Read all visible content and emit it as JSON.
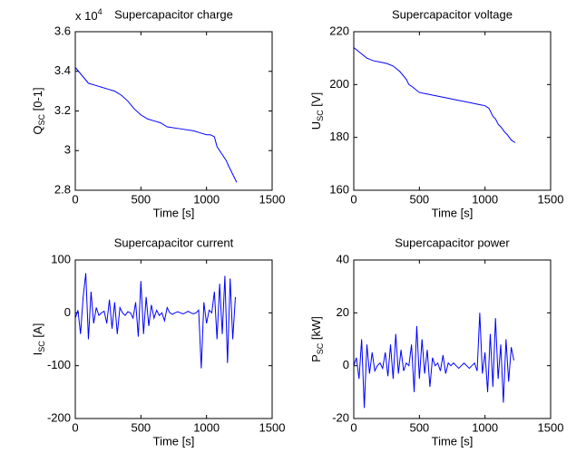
{
  "chart_data": [
    {
      "type": "line",
      "title": "Supercapacitor charge",
      "xlabel": "Time [s]",
      "ylabel": [
        "Q",
        "SC",
        " [0-1]"
      ],
      "y_exponent": [
        "x 10",
        "4"
      ],
      "xlim": [
        0,
        1500
      ],
      "xticks": [
        0,
        500,
        1000,
        1500
      ],
      "ylim": [
        2.8,
        3.6
      ],
      "yticks": [
        2.8,
        3,
        3.2,
        3.4,
        3.6
      ],
      "x": [
        0,
        50,
        100,
        150,
        200,
        250,
        300,
        350,
        400,
        450,
        500,
        550,
        600,
        650,
        700,
        800,
        900,
        950,
        1000,
        1030,
        1060,
        1080,
        1100,
        1120,
        1150,
        1170,
        1200,
        1230
      ],
      "series": [
        {
          "color": "#0000ff",
          "values": [
            3.42,
            3.38,
            3.34,
            3.33,
            3.32,
            3.31,
            3.3,
            3.28,
            3.25,
            3.21,
            3.18,
            3.16,
            3.15,
            3.14,
            3.12,
            3.11,
            3.1,
            3.09,
            3.08,
            3.08,
            3.07,
            3.02,
            3.0,
            2.98,
            2.95,
            2.92,
            2.88,
            2.84
          ]
        }
      ]
    },
    {
      "type": "line",
      "title": "Supercapacitor voltage",
      "xlabel": "Time [s]",
      "ylabel": [
        "U",
        "SC",
        " [V]"
      ],
      "xlim": [
        0,
        1500
      ],
      "xticks": [
        0,
        500,
        1000,
        1500
      ],
      "ylim": [
        160,
        220
      ],
      "yticks": [
        160,
        180,
        200,
        220
      ],
      "x": [
        0,
        50,
        100,
        150,
        200,
        250,
        300,
        350,
        400,
        420,
        450,
        500,
        550,
        600,
        700,
        800,
        900,
        950,
        1000,
        1030,
        1060,
        1080,
        1100,
        1120,
        1150,
        1170,
        1200,
        1230
      ],
      "series": [
        {
          "color": "#0000ff",
          "values": [
            214,
            212,
            210,
            209,
            208.5,
            208,
            207,
            205,
            202,
            200,
            199,
            197,
            196.5,
            196,
            195,
            194,
            193,
            192.5,
            192,
            191,
            188,
            187,
            185,
            184,
            182,
            181,
            179,
            178
          ]
        }
      ]
    },
    {
      "type": "line",
      "title": "Supercapacitor current",
      "xlabel": "Time [s]",
      "ylabel": [
        "I",
        "SC",
        " [A]"
      ],
      "xlim": [
        0,
        1500
      ],
      "xticks": [
        0,
        500,
        1000,
        1500
      ],
      "ylim": [
        -200,
        100
      ],
      "yticks": [
        -200,
        -100,
        0,
        100
      ],
      "x": [
        0,
        20,
        40,
        60,
        80,
        100,
        120,
        140,
        160,
        180,
        200,
        220,
        240,
        260,
        280,
        300,
        320,
        340,
        360,
        380,
        400,
        420,
        440,
        460,
        480,
        500,
        520,
        540,
        560,
        580,
        600,
        620,
        640,
        660,
        680,
        700,
        720,
        740,
        760,
        780,
        800,
        820,
        840,
        860,
        880,
        900,
        920,
        940,
        960,
        980,
        1000,
        1020,
        1040,
        1060,
        1080,
        1100,
        1120,
        1140,
        1160,
        1180,
        1200,
        1220
      ],
      "series": [
        {
          "color": "#0000ff",
          "values": [
            -10,
            5,
            -40,
            30,
            75,
            -50,
            40,
            -20,
            10,
            -5,
            0,
            3,
            -20,
            25,
            -30,
            20,
            -40,
            10,
            0,
            -5,
            2,
            0,
            -10,
            20,
            -45,
            60,
            -40,
            30,
            -25,
            15,
            -10,
            5,
            -5,
            0,
            -15,
            10,
            0,
            -3,
            0,
            2,
            0,
            -2,
            0,
            3,
            0,
            -2,
            0,
            5,
            -105,
            20,
            -20,
            5,
            0,
            40,
            -50,
            55,
            -40,
            70,
            -95,
            65,
            -50,
            30
          ]
        }
      ]
    },
    {
      "type": "line",
      "title": "Supercapacitor power",
      "xlabel": "Time [s]",
      "ylabel": [
        "P",
        "SC",
        " [kW]"
      ],
      "xlim": [
        0,
        1500
      ],
      "xticks": [
        0,
        500,
        1000,
        1500
      ],
      "ylim": [
        -20,
        40
      ],
      "yticks": [
        -20,
        0,
        20,
        40
      ],
      "x": [
        0,
        20,
        40,
        60,
        80,
        100,
        120,
        140,
        160,
        180,
        200,
        220,
        240,
        260,
        280,
        300,
        320,
        340,
        360,
        380,
        400,
        420,
        440,
        460,
        480,
        500,
        520,
        540,
        560,
        580,
        600,
        620,
        640,
        660,
        680,
        700,
        720,
        740,
        760,
        780,
        800,
        820,
        840,
        860,
        880,
        900,
        920,
        940,
        960,
        980,
        1000,
        1020,
        1040,
        1060,
        1080,
        1100,
        1120,
        1140,
        1160,
        1180,
        1200,
        1220
      ],
      "series": [
        {
          "color": "#0000ff",
          "values": [
            0,
            3,
            -5,
            10,
            -16,
            8,
            -3,
            5,
            -2,
            0,
            1,
            -1,
            5,
            -4,
            8,
            -5,
            12,
            -3,
            6,
            -2,
            1,
            0,
            8,
            -10,
            15,
            -5,
            10,
            -3,
            6,
            -8,
            3,
            0,
            1,
            -2,
            4,
            -3,
            1,
            0,
            1,
            0,
            -1,
            0,
            1,
            0,
            -1,
            0,
            1,
            -2,
            20,
            -3,
            5,
            -10,
            12,
            -8,
            18,
            -5,
            8,
            -14,
            10,
            -6,
            7,
            2
          ]
        }
      ]
    }
  ]
}
